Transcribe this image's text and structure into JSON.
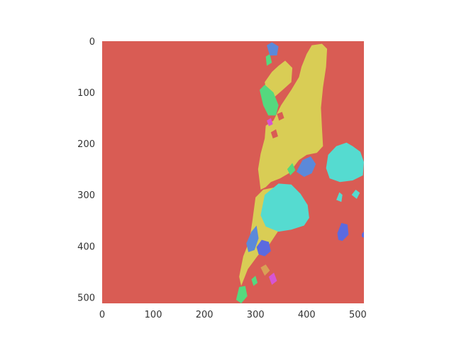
{
  "chart_data": {
    "type": "heatmap",
    "title": "",
    "xlabel": "",
    "ylabel": "",
    "xlim": [
      0,
      512
    ],
    "ylim": [
      512,
      0
    ],
    "xticks": [
      0,
      100,
      200,
      300,
      400,
      500
    ],
    "yticks": [
      0,
      100,
      200,
      300,
      400,
      500
    ],
    "grid": false,
    "legend": "none",
    "background_class_color": "#d95c54",
    "class_colors": {
      "background": "#d95c54",
      "yellow": "#d9cd55",
      "cyan": "#55dbd0",
      "green": "#55d97e",
      "blue": "#5b89d9",
      "indigo": "#5b6ae0",
      "magenta": "#d655d4",
      "orange": "#d9a055"
    },
    "regions": [
      {
        "class": "yellow",
        "polygon": [
          [
            310,
            290
          ],
          [
            305,
            250
          ],
          [
            310,
            220
          ],
          [
            318,
            190
          ],
          [
            320,
            165
          ],
          [
            335,
            155
          ],
          [
            350,
            125
          ],
          [
            370,
            95
          ],
          [
            385,
            70
          ],
          [
            390,
            50
          ],
          [
            400,
            25
          ],
          [
            410,
            8
          ],
          [
            430,
            5
          ],
          [
            440,
            15
          ],
          [
            438,
            50
          ],
          [
            432,
            90
          ],
          [
            428,
            130
          ],
          [
            430,
            170
          ],
          [
            432,
            205
          ],
          [
            420,
            218
          ],
          [
            400,
            222
          ],
          [
            385,
            232
          ],
          [
            365,
            258
          ],
          [
            348,
            268
          ],
          [
            330,
            275
          ],
          [
            320,
            285
          ]
        ]
      },
      {
        "class": "yellow",
        "polygon": [
          [
            300,
            305
          ],
          [
            315,
            290
          ],
          [
            340,
            285
          ],
          [
            358,
            300
          ],
          [
            352,
            340
          ],
          [
            345,
            370
          ],
          [
            325,
            400
          ],
          [
            305,
            418
          ],
          [
            285,
            445
          ],
          [
            272,
            478
          ],
          [
            268,
            460
          ],
          [
            276,
            420
          ],
          [
            288,
            390
          ],
          [
            294,
            350
          ]
        ]
      },
      {
        "class": "yellow",
        "polygon": [
          [
            318,
            80
          ],
          [
            332,
            60
          ],
          [
            345,
            48
          ],
          [
            358,
            38
          ],
          [
            372,
            52
          ],
          [
            370,
            80
          ],
          [
            352,
            96
          ],
          [
            336,
            110
          ],
          [
            322,
            102
          ]
        ]
      },
      {
        "class": "cyan",
        "polygon": [
          [
            318,
            300
          ],
          [
            345,
            278
          ],
          [
            370,
            280
          ],
          [
            388,
            298
          ],
          [
            402,
            320
          ],
          [
            405,
            345
          ],
          [
            395,
            360
          ],
          [
            370,
            368
          ],
          [
            345,
            372
          ],
          [
            320,
            362
          ],
          [
            310,
            340
          ]
        ]
      },
      {
        "class": "cyan",
        "polygon": [
          [
            442,
            222
          ],
          [
            458,
            205
          ],
          [
            478,
            198
          ],
          [
            490,
            205
          ],
          [
            505,
            216
          ],
          [
            512,
            236
          ],
          [
            510,
            262
          ],
          [
            490,
            272
          ],
          [
            465,
            275
          ],
          [
            445,
            268
          ],
          [
            438,
            248
          ]
        ]
      },
      {
        "class": "cyan",
        "polygon": [
          [
            458,
            310
          ],
          [
            464,
            295
          ],
          [
            470,
            300
          ],
          [
            468,
            314
          ]
        ]
      },
      {
        "class": "cyan",
        "polygon": [
          [
            488,
            300
          ],
          [
            496,
            290
          ],
          [
            504,
            296
          ],
          [
            498,
            308
          ]
        ]
      },
      {
        "class": "green",
        "polygon": [
          [
            308,
            95
          ],
          [
            318,
            85
          ],
          [
            335,
            100
          ],
          [
            345,
            125
          ],
          [
            340,
            145
          ],
          [
            325,
            145
          ],
          [
            315,
            125
          ]
        ]
      },
      {
        "class": "green",
        "polygon": [
          [
            320,
            30
          ],
          [
            328,
            25
          ],
          [
            332,
            42
          ],
          [
            322,
            48
          ]
        ]
      },
      {
        "class": "green",
        "polygon": [
          [
            362,
            250
          ],
          [
            372,
            238
          ],
          [
            378,
            252
          ],
          [
            368,
            262
          ]
        ]
      },
      {
        "class": "green",
        "polygon": [
          [
            262,
            505
          ],
          [
            268,
            480
          ],
          [
            280,
            478
          ],
          [
            284,
            498
          ],
          [
            272,
            512
          ]
        ]
      },
      {
        "class": "green",
        "polygon": [
          [
            292,
            465
          ],
          [
            300,
            458
          ],
          [
            304,
            472
          ],
          [
            296,
            478
          ]
        ]
      },
      {
        "class": "blue",
        "polygon": [
          [
            380,
            255
          ],
          [
            392,
            232
          ],
          [
            408,
            225
          ],
          [
            418,
            240
          ],
          [
            410,
            258
          ],
          [
            395,
            265
          ]
        ]
      },
      {
        "class": "blue",
        "polygon": [
          [
            322,
            8
          ],
          [
            332,
            2
          ],
          [
            345,
            10
          ],
          [
            342,
            28
          ],
          [
            328,
            28
          ]
        ]
      },
      {
        "class": "blue",
        "polygon": [
          [
            282,
            395
          ],
          [
            292,
            372
          ],
          [
            302,
            360
          ],
          [
            306,
            385
          ],
          [
            298,
            408
          ],
          [
            286,
            412
          ]
        ]
      },
      {
        "class": "indigo",
        "polygon": [
          [
            302,
            402
          ],
          [
            312,
            388
          ],
          [
            326,
            392
          ],
          [
            330,
            410
          ],
          [
            318,
            420
          ],
          [
            306,
            416
          ]
        ]
      },
      {
        "class": "indigo",
        "polygon": [
          [
            460,
            375
          ],
          [
            468,
            355
          ],
          [
            480,
            358
          ],
          [
            482,
            378
          ],
          [
            470,
            390
          ],
          [
            462,
            388
          ]
        ]
      },
      {
        "class": "indigo",
        "polygon": [
          [
            508,
            376
          ],
          [
            512,
            372
          ],
          [
            512,
            384
          ],
          [
            508,
            382
          ]
        ]
      },
      {
        "class": "magenta",
        "polygon": [
          [
            322,
            155
          ],
          [
            330,
            150
          ],
          [
            334,
            162
          ],
          [
            326,
            166
          ]
        ]
      },
      {
        "class": "magenta",
        "polygon": [
          [
            326,
            460
          ],
          [
            336,
            452
          ],
          [
            342,
            468
          ],
          [
            332,
            476
          ]
        ]
      },
      {
        "class": "orange",
        "polygon": [
          [
            310,
            442
          ],
          [
            320,
            436
          ],
          [
            328,
            448
          ],
          [
            318,
            458
          ]
        ]
      },
      {
        "class": "background",
        "polygon": [
          [
            342,
            142
          ],
          [
            352,
            138
          ],
          [
            356,
            150
          ],
          [
            346,
            155
          ]
        ]
      },
      {
        "class": "background",
        "polygon": [
          [
            330,
            178
          ],
          [
            340,
            172
          ],
          [
            344,
            186
          ],
          [
            334,
            190
          ]
        ]
      }
    ]
  }
}
